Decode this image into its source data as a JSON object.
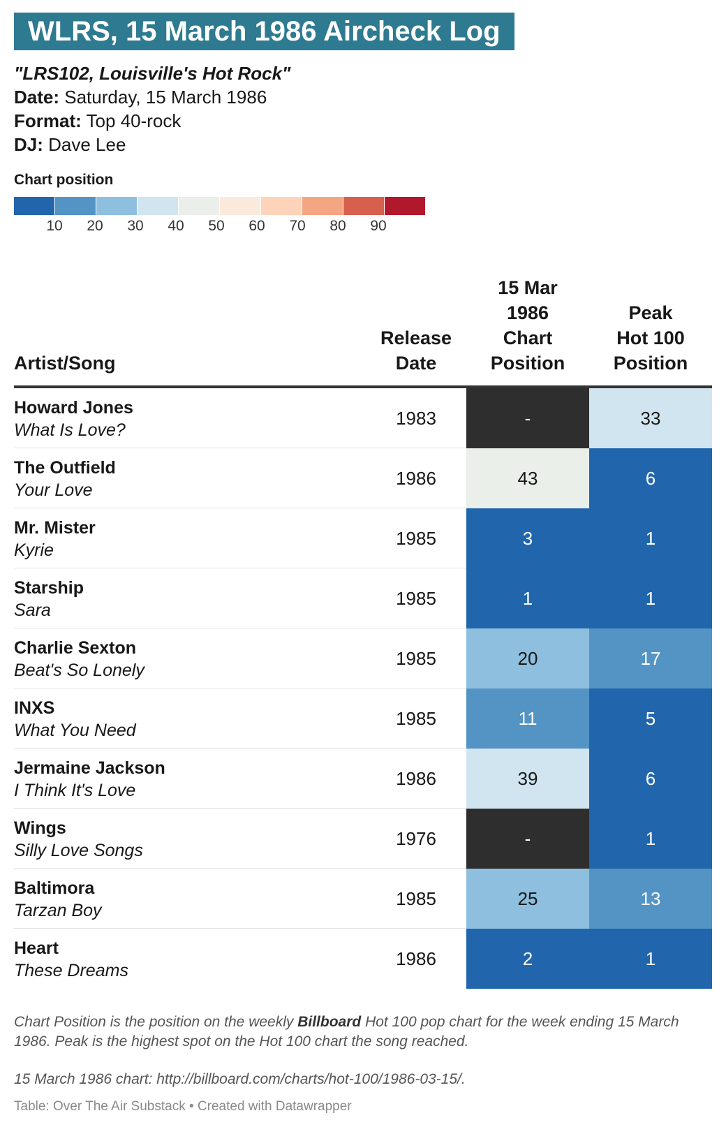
{
  "title": "WLRS, 15 March 1986 Aircheck Log",
  "meta": {
    "tagline": "\"LRS102, Louisville's Hot Rock\"",
    "date_label": "Date:",
    "date_value": "Saturday, 15 March 1986",
    "format_label": "Format:",
    "format_value": "Top 40-rock",
    "dj_label": "DJ:",
    "dj_value": "Dave Lee"
  },
  "legend": {
    "title": "Chart position",
    "colors": [
      "#2166ac",
      "#5394c5",
      "#8fbfdf",
      "#d1e5f0",
      "#eaefe9",
      "#fbeadc",
      "#fdd4b9",
      "#f4a582",
      "#d6604d",
      "#b2182b"
    ],
    "ticks": [
      "10",
      "20",
      "30",
      "40",
      "50",
      "60",
      "70",
      "80",
      "90"
    ],
    "missing_color": "#2e2e2e"
  },
  "columns": {
    "artist_song": "Artist/Song",
    "release_l1": "Release",
    "release_l2": "Date",
    "chart_l1": "15 Mar",
    "chart_l2": "1986",
    "chart_l3": "Chart",
    "chart_l4": "Position",
    "peak_l1": "Peak",
    "peak_l2": "Hot 100",
    "peak_l3": "Position"
  },
  "chart_data": {
    "type": "table",
    "columns": [
      "Artist/Song",
      "Release Date",
      "15 Mar 1986 Chart Position",
      "Peak Hot 100 Position"
    ],
    "rows": [
      {
        "artist": "Howard Jones",
        "song": "What Is Love?",
        "release": "1983",
        "chart_position": "-",
        "peak": "33"
      },
      {
        "artist": "The Outfield",
        "song": "Your Love",
        "release": "1986",
        "chart_position": "43",
        "peak": "6"
      },
      {
        "artist": "Mr. Mister",
        "song": "Kyrie",
        "release": "1985",
        "chart_position": "3",
        "peak": "1"
      },
      {
        "artist": "Starship",
        "song": "Sara",
        "release": "1985",
        "chart_position": "1",
        "peak": "1"
      },
      {
        "artist": "Charlie Sexton",
        "song": "Beat's So Lonely",
        "release": "1985",
        "chart_position": "20",
        "peak": "17"
      },
      {
        "artist": "INXS",
        "song": "What You Need",
        "release": "1985",
        "chart_position": "11",
        "peak": "5"
      },
      {
        "artist": "Jermaine Jackson",
        "song": "I Think It's Love",
        "release": "1986",
        "chart_position": "39",
        "peak": "6"
      },
      {
        "artist": "Wings",
        "song": "Silly Love Songs",
        "release": "1976",
        "chart_position": "-",
        "peak": "1"
      },
      {
        "artist": "Baltimora",
        "song": "Tarzan Boy",
        "release": "1985",
        "chart_position": "25",
        "peak": "13"
      },
      {
        "artist": "Heart",
        "song": "These Dreams",
        "release": "1986",
        "chart_position": "2",
        "peak": "1"
      }
    ]
  },
  "footnote": {
    "part1": "Chart Position is the position on the weekly ",
    "bold": "Billboard",
    "part2": " Hot 100 pop chart for the week ending 15 March 1986. Peak is the highest spot on the Hot 100 chart the song reached."
  },
  "source": "15 March 1986 chart: http://billboard.com/charts/hot-100/1986-03-15/.",
  "credit": "Table: Over The Air Substack • Created with Datawrapper"
}
